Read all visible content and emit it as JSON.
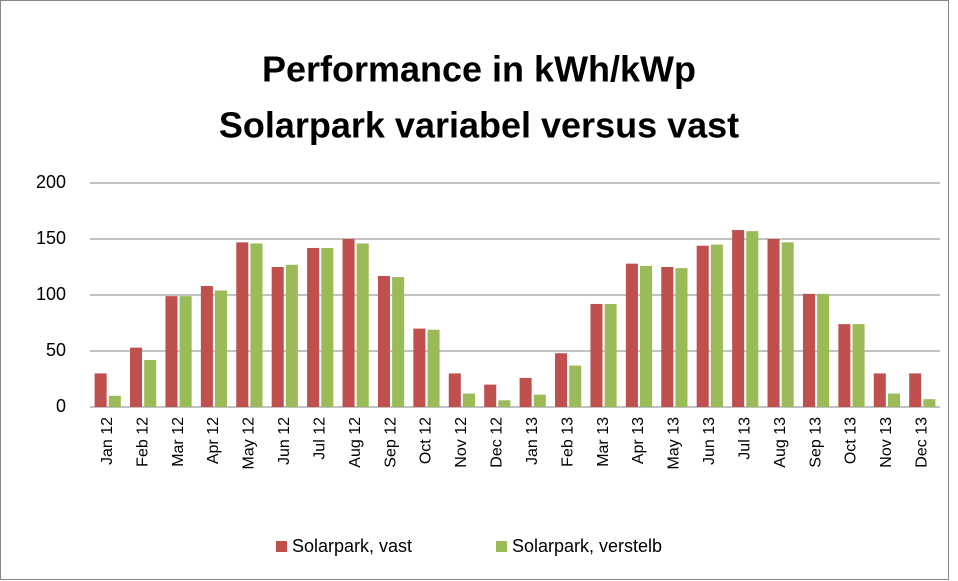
{
  "chart_data": {
    "type": "bar",
    "title": [
      "Performance in kWh/kWp",
      "Solarpark variabel versus vast"
    ],
    "categories": [
      "Jan 12",
      "Feb 12",
      "Mar 12",
      "Apr 12",
      "May 12",
      "Jun 12",
      "Jul 12",
      "Aug 12",
      "Sep 12",
      "Oct 12",
      "Nov 12",
      "Dec 12",
      "Jan 13",
      "Feb 13",
      "Mar 13",
      "Apr 13",
      "May 13",
      "Jun 13",
      "Jul 13",
      "Aug 13",
      "Sep 13",
      "Oct 13",
      "Nov 13",
      "Dec 13"
    ],
    "series": [
      {
        "name": "Solarpark, vast",
        "color": "#c0504d",
        "values": [
          30,
          53,
          99,
          108,
          147,
          125,
          142,
          150,
          117,
          70,
          30,
          20,
          26,
          48,
          92,
          128,
          125,
          144,
          158,
          150,
          101,
          74,
          30,
          30
        ]
      },
      {
        "name": "Solarpark, verstelb",
        "color": "#9bbb59",
        "values": [
          10,
          42,
          99,
          104,
          146,
          127,
          142,
          146,
          116,
          69,
          12,
          6,
          11,
          37,
          92,
          126,
          124,
          145,
          157,
          147,
          101,
          74,
          12,
          7
        ]
      }
    ],
    "ylim": [
      0,
      200
    ],
    "yticks": [
      0,
      50,
      100,
      150,
      200
    ],
    "grid": true,
    "legend": "bottom"
  }
}
